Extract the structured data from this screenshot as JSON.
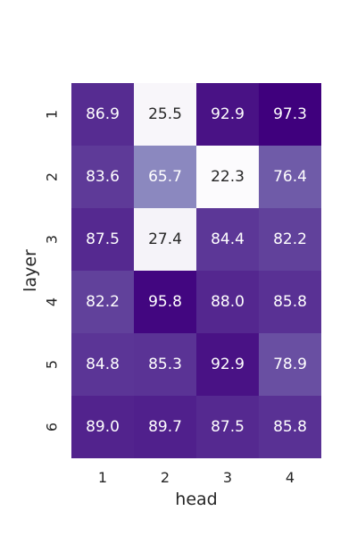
{
  "chart_data": {
    "type": "heatmap",
    "xlabel": "head",
    "ylabel": "layer",
    "x_categories": [
      "1",
      "2",
      "3",
      "4"
    ],
    "y_categories": [
      "1",
      "2",
      "3",
      "4",
      "5",
      "6"
    ],
    "values": [
      [
        86.9,
        25.5,
        92.9,
        97.3
      ],
      [
        83.6,
        65.7,
        22.3,
        76.4
      ],
      [
        87.5,
        27.4,
        84.4,
        82.2
      ],
      [
        82.2,
        95.8,
        88.0,
        85.8
      ],
      [
        84.8,
        85.3,
        92.9,
        78.9
      ],
      [
        89.0,
        89.7,
        87.5,
        85.8
      ]
    ],
    "value_format": "0.1f",
    "colormap": "Purples",
    "colorscale": {
      "min": 22.3,
      "max": 97.3,
      "low_color": "#fcfbfd",
      "high_color": "#3f007d"
    },
    "annotation_color_dark_cells": "#ffffff",
    "annotation_color_light_cells": "#262626",
    "grid": false,
    "legend": "none"
  }
}
